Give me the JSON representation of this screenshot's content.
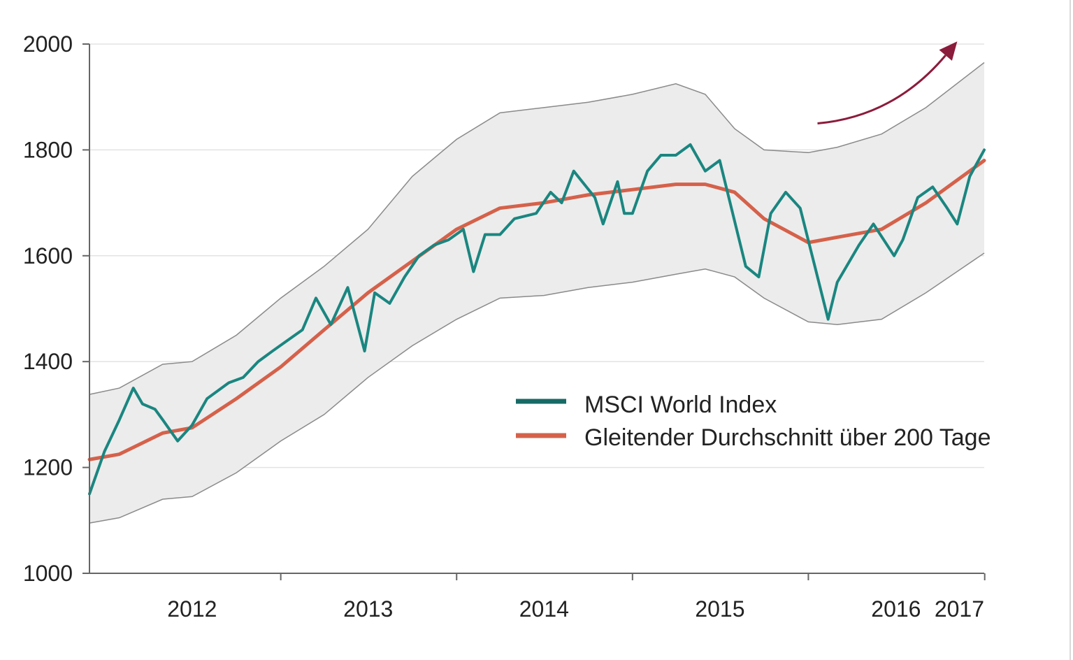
{
  "chart_data": {
    "type": "line",
    "title": "",
    "xlabel": "",
    "ylabel": "",
    "ylim": [
      1000,
      2000
    ],
    "y_ticks": [
      "1000",
      "1200",
      "1400",
      "1600",
      "1800",
      "2000"
    ],
    "x_ticks": [
      "2012",
      "2013",
      "2014",
      "2015",
      "2016",
      "2017"
    ],
    "x_range": [
      "2011-12-01",
      "2016-12-31"
    ],
    "grid": "horizontal",
    "legend_position": "lower-right",
    "colors": {
      "index": "#1a8680",
      "index_legend": "#176a66",
      "moving_average": "#d5614a",
      "band_fill": "#ececec",
      "band_edge": "#8a8a8a",
      "arrow": "#8b1c3b"
    },
    "band": {
      "name": "",
      "x": [
        "2011-12-01",
        "2012-02-01",
        "2012-05-01",
        "2012-07-01",
        "2012-10-01",
        "2013-01-01",
        "2013-04-01",
        "2013-07-01",
        "2013-10-01",
        "2014-01-01",
        "2014-04-01",
        "2014-07-01",
        "2014-10-01",
        "2015-01-01",
        "2015-04-01",
        "2015-06-01",
        "2015-08-01",
        "2015-10-01",
        "2016-01-01",
        "2016-03-01",
        "2016-06-01",
        "2016-09-01",
        "2016-12-31"
      ],
      "upper": [
        1338,
        1350,
        1395,
        1400,
        1450,
        1520,
        1580,
        1650,
        1750,
        1820,
        1870,
        1880,
        1890,
        1905,
        1925,
        1905,
        1840,
        1800,
        1795,
        1805,
        1830,
        1880,
        1965
      ],
      "lower": [
        1095,
        1105,
        1140,
        1145,
        1190,
        1250,
        1300,
        1370,
        1430,
        1480,
        1520,
        1525,
        1540,
        1550,
        1565,
        1575,
        1560,
        1520,
        1475,
        1470,
        1480,
        1530,
        1605
      ]
    },
    "series": [
      {
        "name": "MSCI World Index",
        "x": [
          "2011-12-01",
          "2012-01-01",
          "2012-02-01",
          "2012-03-01",
          "2012-03-20",
          "2012-04-15",
          "2012-05-01",
          "2012-06-01",
          "2012-07-01",
          "2012-08-01",
          "2012-09-15",
          "2012-10-15",
          "2012-11-15",
          "2012-12-15",
          "2013-01-15",
          "2013-02-15",
          "2013-03-15",
          "2013-04-15",
          "2013-05-20",
          "2013-06-24",
          "2013-07-15",
          "2013-08-15",
          "2013-09-15",
          "2013-10-15",
          "2013-11-15",
          "2013-12-15",
          "2014-01-15",
          "2014-02-05",
          "2014-03-01",
          "2014-04-01",
          "2014-05-01",
          "2014-06-15",
          "2014-07-15",
          "2014-08-07",
          "2014-09-01",
          "2014-10-15",
          "2014-11-01",
          "2014-12-01",
          "2014-12-15",
          "2015-01-01",
          "2015-02-01",
          "2015-03-01",
          "2015-04-01",
          "2015-05-01",
          "2015-06-01",
          "2015-07-01",
          "2015-08-24",
          "2015-09-20",
          "2015-10-15",
          "2015-11-15",
          "2015-12-15",
          "2016-01-20",
          "2016-02-11",
          "2016-03-01",
          "2016-04-15",
          "2016-05-15",
          "2016-06-27",
          "2016-07-15",
          "2016-08-15",
          "2016-09-15",
          "2016-10-15",
          "2016-11-05",
          "2016-12-01",
          "2016-12-31"
        ],
        "values": [
          1150,
          1230,
          1290,
          1350,
          1320,
          1310,
          1290,
          1250,
          1280,
          1330,
          1360,
          1370,
          1400,
          1420,
          1440,
          1460,
          1520,
          1470,
          1540,
          1420,
          1530,
          1510,
          1560,
          1600,
          1620,
          1630,
          1650,
          1570,
          1640,
          1640,
          1670,
          1680,
          1720,
          1700,
          1760,
          1710,
          1660,
          1740,
          1680,
          1680,
          1760,
          1790,
          1790,
          1810,
          1760,
          1780,
          1580,
          1560,
          1680,
          1720,
          1690,
          1560,
          1480,
          1550,
          1620,
          1660,
          1600,
          1630,
          1710,
          1730,
          1690,
          1660,
          1750,
          1800
        ]
      },
      {
        "name": "Gleitender Durchschnitt über 200 Tage",
        "x": [
          "2011-12-01",
          "2012-02-01",
          "2012-05-01",
          "2012-07-01",
          "2012-10-01",
          "2013-01-01",
          "2013-04-01",
          "2013-07-01",
          "2013-10-01",
          "2014-01-01",
          "2014-04-01",
          "2014-07-01",
          "2014-10-01",
          "2015-01-01",
          "2015-04-01",
          "2015-06-01",
          "2015-08-01",
          "2015-10-01",
          "2016-01-01",
          "2016-03-01",
          "2016-06-01",
          "2016-09-01",
          "2016-12-31"
        ],
        "values": [
          1215,
          1225,
          1265,
          1275,
          1330,
          1390,
          1460,
          1530,
          1590,
          1650,
          1690,
          1700,
          1715,
          1725,
          1735,
          1735,
          1720,
          1670,
          1625,
          1635,
          1650,
          1700,
          1780
        ]
      }
    ],
    "annotations": [
      {
        "type": "arrow",
        "label": "",
        "from": [
          "2016-01-20",
          1850
        ],
        "to": [
          "2016-11-05",
          2005
        ]
      }
    ]
  }
}
